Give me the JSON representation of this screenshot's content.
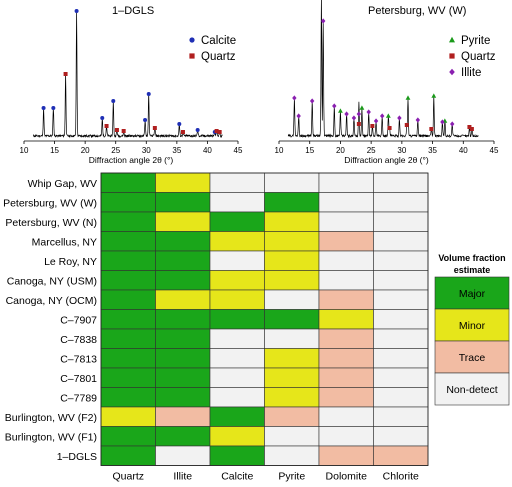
{
  "colors": {
    "Major": "#1aa61a",
    "Minor": "#e6e61a",
    "Trace": "#f2bca3",
    "Non-detect": "#f2f2f2",
    "Calcite": "#1f2fb5",
    "Quartz": "#b01f1f",
    "Pyrite": "#1a9a1a",
    "Illite": "#8a1fb0",
    "pattern": "#000000"
  },
  "chart_data": [
    {
      "type": "line",
      "title": "1–DGLS",
      "xlabel": "Diffraction angle 2θ (°)",
      "xlim": [
        10,
        45
      ],
      "xticks": [
        10,
        15,
        20,
        25,
        30,
        35,
        40,
        45
      ],
      "legend_position": "top-right",
      "series": [
        {
          "name": "Calcite",
          "marker": "circle",
          "peaks": [
            {
              "x": 13.2,
              "y": 28
            },
            {
              "x": 14.8,
              "y": 28
            },
            {
              "x": 18.6,
              "y": 125
            },
            {
              "x": 22.8,
              "y": 18
            },
            {
              "x": 24.6,
              "y": 35
            },
            {
              "x": 29.8,
              "y": 16
            },
            {
              "x": 30.4,
              "y": 42
            },
            {
              "x": 35.4,
              "y": 12
            },
            {
              "x": 38.4,
              "y": 6
            },
            {
              "x": 41.2,
              "y": 4
            }
          ]
        },
        {
          "name": "Quartz",
          "marker": "square",
          "peaks": [
            {
              "x": 16.8,
              "y": 62
            },
            {
              "x": 23.5,
              "y": 10
            },
            {
              "x": 25.2,
              "y": 6
            },
            {
              "x": 26.3,
              "y": 5
            },
            {
              "x": 31.4,
              "y": 8
            },
            {
              "x": 36.0,
              "y": 4
            },
            {
              "x": 41.5,
              "y": 5
            },
            {
              "x": 42.0,
              "y": 4
            }
          ]
        }
      ]
    },
    {
      "type": "line",
      "title": "Petersburg, WV (W)",
      "xlabel": "Diffraction angle 2θ (°)",
      "xlim": [
        10,
        45
      ],
      "xticks": [
        10,
        15,
        20,
        25,
        30,
        35,
        40,
        45
      ],
      "legend_position": "top-right",
      "series": [
        {
          "name": "Pyrite",
          "marker": "triangle",
          "peaks": [
            {
              "x": 20.0,
              "y": 25
            },
            {
              "x": 23.5,
              "y": 28
            },
            {
              "x": 27.8,
              "y": 20
            },
            {
              "x": 31.0,
              "y": 38
            },
            {
              "x": 35.2,
              "y": 40
            },
            {
              "x": 37.0,
              "y": 15
            }
          ]
        },
        {
          "name": "Quartz",
          "marker": "square",
          "peaks": [
            {
              "x": 16.9,
              "y": 140
            },
            {
              "x": 23.0,
              "y": 12
            },
            {
              "x": 25.2,
              "y": 10
            },
            {
              "x": 28.0,
              "y": 8
            },
            {
              "x": 30.8,
              "y": 11
            },
            {
              "x": 34.8,
              "y": 7
            },
            {
              "x": 41.0,
              "y": 9
            },
            {
              "x": 41.4,
              "y": 7
            }
          ]
        },
        {
          "name": "Illite",
          "marker": "diamond",
          "peaks": [
            {
              "x": 12.5,
              "y": 38
            },
            {
              "x": 13.2,
              "y": 20
            },
            {
              "x": 15.4,
              "y": 35
            },
            {
              "x": 17.2,
              "y": 115
            },
            {
              "x": 19.0,
              "y": 30
            },
            {
              "x": 21.0,
              "y": 22
            },
            {
              "x": 22.2,
              "y": 18
            },
            {
              "x": 23.0,
              "y": 22
            },
            {
              "x": 24.6,
              "y": 24
            },
            {
              "x": 25.8,
              "y": 15
            },
            {
              "x": 26.8,
              "y": 20
            },
            {
              "x": 29.6,
              "y": 18
            },
            {
              "x": 32.6,
              "y": 16
            },
            {
              "x": 36.6,
              "y": 14
            },
            {
              "x": 38.2,
              "y": 12
            }
          ]
        }
      ]
    },
    {
      "type": "heatmap",
      "columns": [
        "Quartz",
        "Illite",
        "Calcite",
        "Pyrite",
        "Dolomite",
        "Chlorite"
      ],
      "rows": [
        {
          "label": "Whip Gap, WV",
          "values": [
            "Major",
            "Minor",
            "Non-detect",
            "Non-detect",
            "Non-detect",
            "Non-detect"
          ]
        },
        {
          "label": "Petersburg, WV (W)",
          "values": [
            "Major",
            "Major",
            "Non-detect",
            "Major",
            "Non-detect",
            "Non-detect"
          ]
        },
        {
          "label": "Petersburg, WV (N)",
          "values": [
            "Major",
            "Minor",
            "Major",
            "Minor",
            "Non-detect",
            "Non-detect"
          ]
        },
        {
          "label": "Marcellus, NY",
          "values": [
            "Major",
            "Major",
            "Minor",
            "Minor",
            "Trace",
            "Non-detect"
          ]
        },
        {
          "label": "Le Roy, NY",
          "values": [
            "Major",
            "Major",
            "Non-detect",
            "Minor",
            "Non-detect",
            "Non-detect"
          ]
        },
        {
          "label": "Canoga, NY (USM)",
          "values": [
            "Major",
            "Major",
            "Minor",
            "Minor",
            "Non-detect",
            "Non-detect"
          ]
        },
        {
          "label": "Canoga, NY (OCM)",
          "values": [
            "Major",
            "Minor",
            "Minor",
            "Non-detect",
            "Trace",
            "Non-detect"
          ]
        },
        {
          "label": "C–7907",
          "values": [
            "Major",
            "Major",
            "Major",
            "Major",
            "Minor",
            "Non-detect"
          ]
        },
        {
          "label": "C–7838",
          "values": [
            "Major",
            "Major",
            "Non-detect",
            "Non-detect",
            "Trace",
            "Non-detect"
          ]
        },
        {
          "label": "C–7813",
          "values": [
            "Major",
            "Major",
            "Non-detect",
            "Minor",
            "Trace",
            "Non-detect"
          ]
        },
        {
          "label": "C–7801",
          "values": [
            "Major",
            "Major",
            "Non-detect",
            "Minor",
            "Trace",
            "Non-detect"
          ]
        },
        {
          "label": "C–7789",
          "values": [
            "Major",
            "Major",
            "Non-detect",
            "Minor",
            "Trace",
            "Non-detect"
          ]
        },
        {
          "label": "Burlington, WV (F2)",
          "values": [
            "Minor",
            "Trace",
            "Major",
            "Trace",
            "Non-detect",
            "Non-detect"
          ]
        },
        {
          "label": "Burlington, WV (F1)",
          "values": [
            "Major",
            "Major",
            "Minor",
            "Non-detect",
            "Non-detect",
            "Non-detect"
          ]
        },
        {
          "label": "1–DGLS",
          "values": [
            "Major",
            "Non-detect",
            "Major",
            "Non-detect",
            "Trace",
            "Trace"
          ]
        }
      ],
      "legend": {
        "title_lines": [
          "Volume fraction",
          "estimate"
        ],
        "items": [
          "Major",
          "Minor",
          "Trace",
          "Non-detect"
        ]
      }
    }
  ]
}
